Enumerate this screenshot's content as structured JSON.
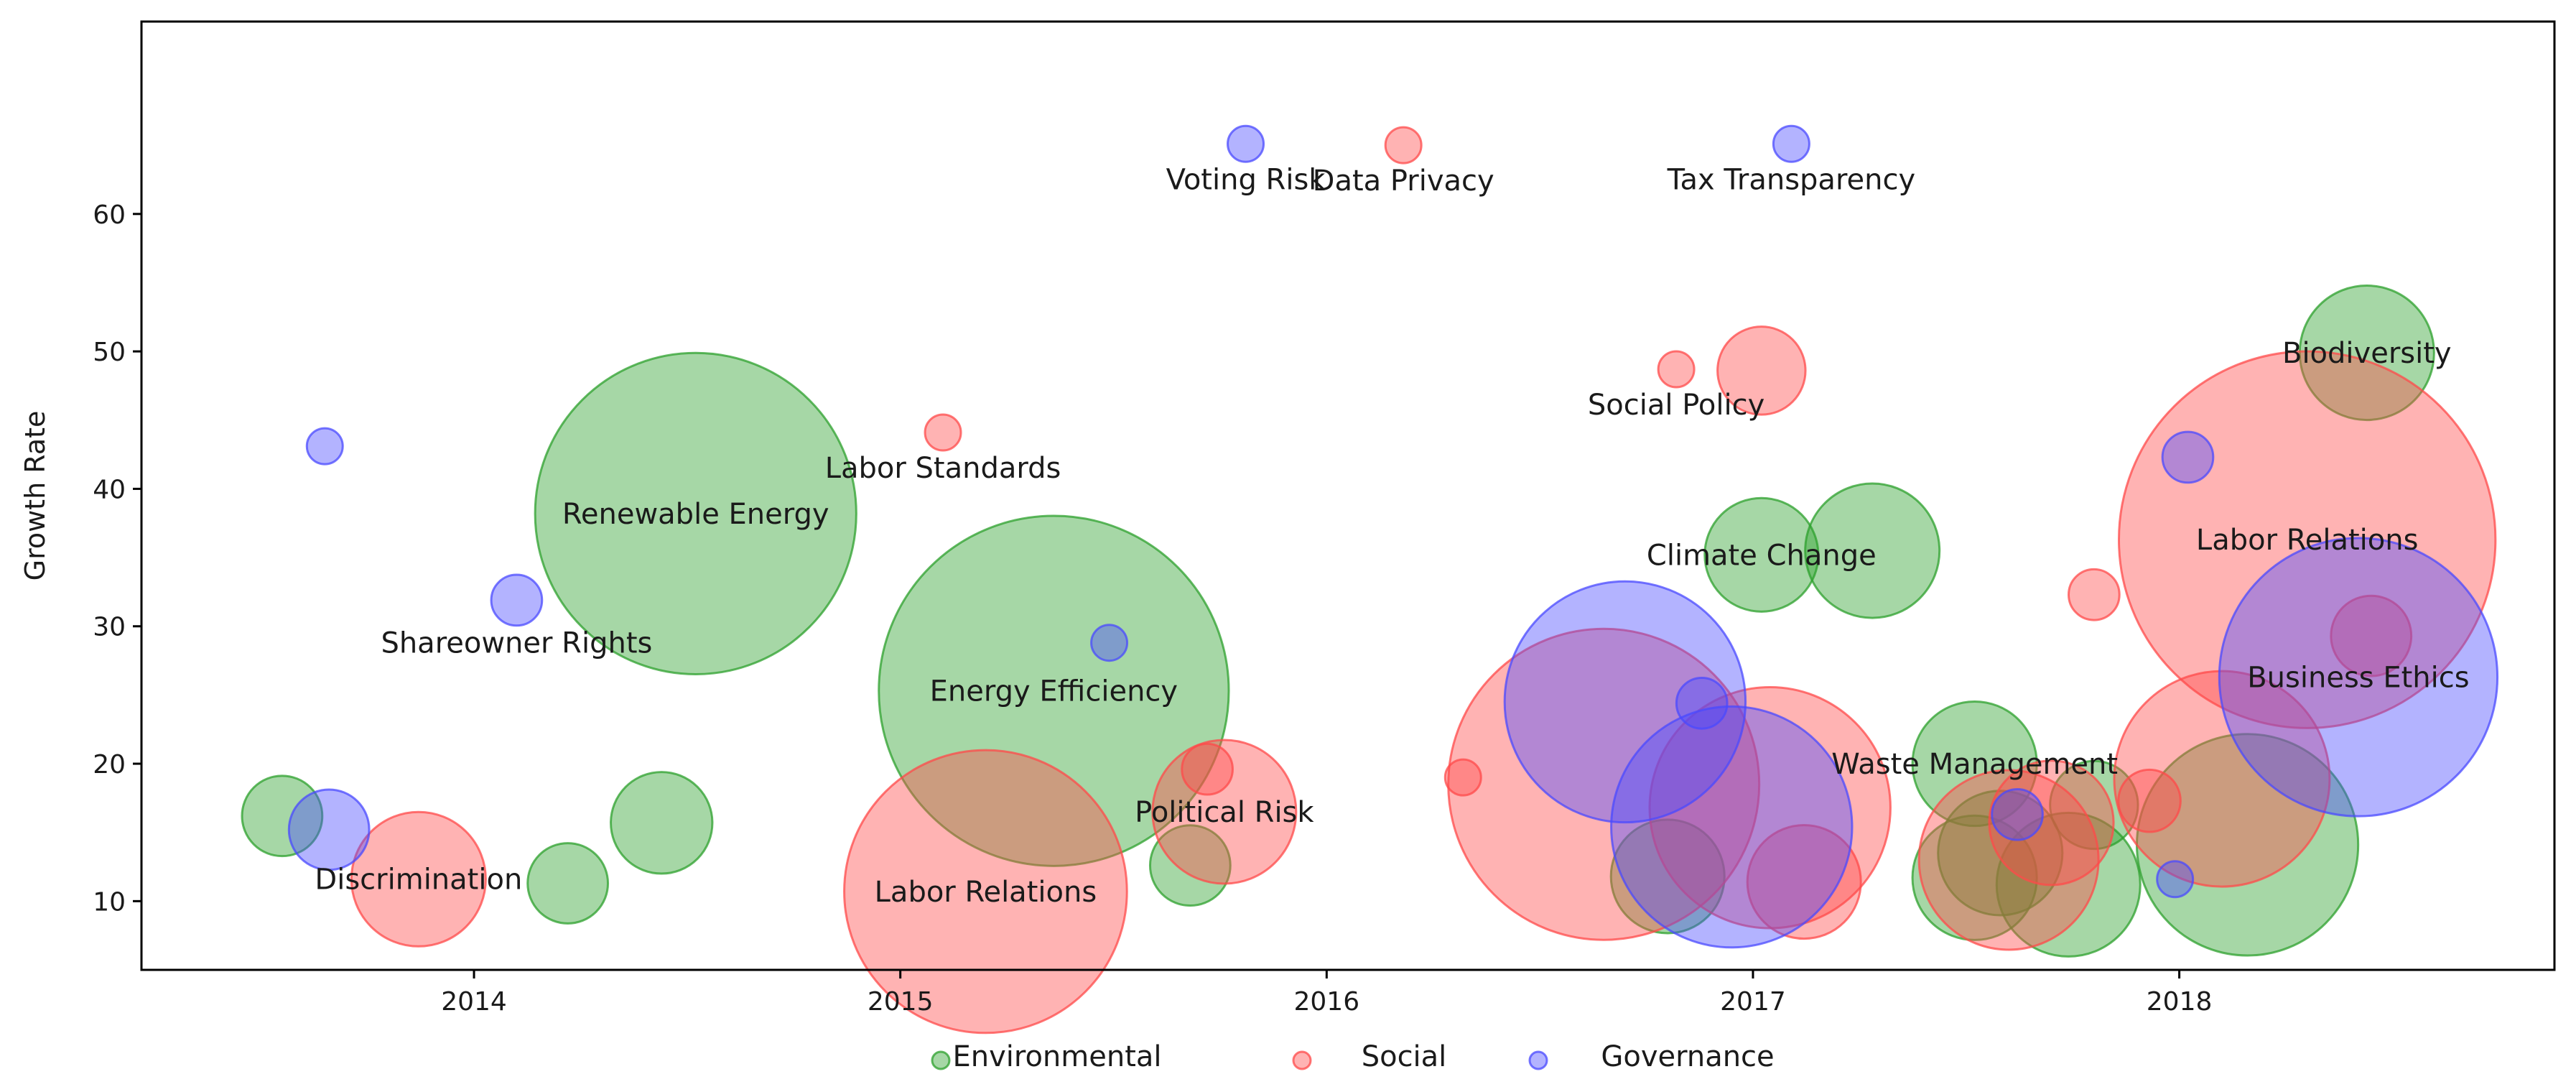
{
  "chart_data": {
    "type": "scatter",
    "subtype": "bubble",
    "title": "",
    "xlabel": "",
    "ylabel": "Growth Rate",
    "xlim": [
      2013.22,
      2018.88
    ],
    "ylim": [
      5,
      74
    ],
    "x_ticks": [
      2014,
      2015,
      2016,
      2017,
      2018
    ],
    "x_tick_labels": [
      "2014",
      "2015",
      "2016",
      "2017",
      "2018"
    ],
    "y_ticks": [
      10,
      20,
      30,
      40,
      50,
      60
    ],
    "y_tick_labels": [
      "10",
      "20",
      "30",
      "40",
      "50",
      "60"
    ],
    "grid": false,
    "legend_position": "bottom-center",
    "series": [
      {
        "name": "Environmental",
        "color": "#2ca02c",
        "legend_label": "Environmental",
        "points": [
          {
            "x": 2013.55,
            "y": 16.2,
            "size": 5
          },
          {
            "x": 2014.22,
            "y": 11.3,
            "size": 5
          },
          {
            "x": 2014.44,
            "y": 15.7,
            "size": 8
          },
          {
            "x": 2014.52,
            "y": 38.2,
            "size": 80,
            "label": "Renewable Energy"
          },
          {
            "x": 2015.36,
            "y": 25.3,
            "size": 95,
            "label": "Energy Efficiency"
          },
          {
            "x": 2015.68,
            "y": 12.6,
            "size": 5
          },
          {
            "x": 2016.8,
            "y": 11.8,
            "size": 10
          },
          {
            "x": 2017.02,
            "y": 35.2,
            "size": 10,
            "label": "Climate Change"
          },
          {
            "x": 2017.28,
            "y": 35.5,
            "size": 14
          },
          {
            "x": 2017.52,
            "y": 20.0,
            "size": 12,
            "label": "Waste Management"
          },
          {
            "x": 2017.52,
            "y": 11.7,
            "size": 12
          },
          {
            "x": 2017.58,
            "y": 13.5,
            "size": 12
          },
          {
            "x": 2017.74,
            "y": 11.2,
            "size": 16
          },
          {
            "x": 2017.8,
            "y": 17.0,
            "size": 6
          },
          {
            "x": 2018.16,
            "y": 14.1,
            "size": 38
          },
          {
            "x": 2018.44,
            "y": 49.9,
            "size": 14,
            "label": "Biodiversity"
          }
        ]
      },
      {
        "name": "Social",
        "color": "#ff4a4a",
        "legend_label": "Social",
        "points": [
          {
            "x": 2013.87,
            "y": 11.6,
            "size": 14,
            "label": "Discrimination"
          },
          {
            "x": 2015.1,
            "y": 44.1,
            "size": 1,
            "label": "Labor Standards"
          },
          {
            "x": 2015.2,
            "y": 10.7,
            "size": 62,
            "label": "Labor Relations"
          },
          {
            "x": 2015.72,
            "y": 19.6,
            "size": 2
          },
          {
            "x": 2015.76,
            "y": 16.5,
            "size": 16,
            "label": "Political Risk"
          },
          {
            "x": 2016.18,
            "y": 65.0,
            "size": 1,
            "label": "Data Privacy"
          },
          {
            "x": 2016.32,
            "y": 19.0,
            "size": 1
          },
          {
            "x": 2016.65,
            "y": 18.5,
            "size": 75
          },
          {
            "x": 2016.82,
            "y": 48.7,
            "size": 1,
            "label": "Social Policy"
          },
          {
            "x": 2017.02,
            "y": 48.6,
            "size": 6
          },
          {
            "x": 2017.04,
            "y": 16.8,
            "size": 45
          },
          {
            "x": 2017.12,
            "y": 11.4,
            "size": 10
          },
          {
            "x": 2017.6,
            "y": 13.0,
            "size": 25
          },
          {
            "x": 2017.7,
            "y": 15.7,
            "size": 12
          },
          {
            "x": 2017.8,
            "y": 32.3,
            "size": 2
          },
          {
            "x": 2017.93,
            "y": 17.3,
            "size": 3
          },
          {
            "x": 2018.1,
            "y": 18.9,
            "size": 36
          },
          {
            "x": 2018.3,
            "y": 36.3,
            "size": 110,
            "label": "Labor Relations"
          },
          {
            "x": 2018.45,
            "y": 29.3,
            "size": 5
          }
        ]
      },
      {
        "name": "Governance",
        "color": "#4a4aff",
        "legend_label": "Governance",
        "points": [
          {
            "x": 2013.65,
            "y": 43.1,
            "size": 1
          },
          {
            "x": 2013.66,
            "y": 15.2,
            "size": 5
          },
          {
            "x": 2014.1,
            "y": 31.9,
            "size": 2,
            "label": "Shareowner Rights"
          },
          {
            "x": 2015.49,
            "y": 28.8,
            "size": 1
          },
          {
            "x": 2015.81,
            "y": 65.1,
            "size": 1,
            "label": "Voting Risk"
          },
          {
            "x": 2016.7,
            "y": 24.5,
            "size": 45
          },
          {
            "x": 2016.88,
            "y": 24.4,
            "size": 2
          },
          {
            "x": 2016.95,
            "y": 15.4,
            "size": 45
          },
          {
            "x": 2017.09,
            "y": 65.1,
            "size": 1,
            "label": "Tax Transparency"
          },
          {
            "x": 2017.62,
            "y": 16.3,
            "size": 2
          },
          {
            "x": 2017.99,
            "y": 11.6,
            "size": 1
          },
          {
            "x": 2018.02,
            "y": 42.3,
            "size": 2
          },
          {
            "x": 2018.42,
            "y": 26.3,
            "size": 60,
            "label": "Business Ethics"
          }
        ]
      }
    ]
  }
}
